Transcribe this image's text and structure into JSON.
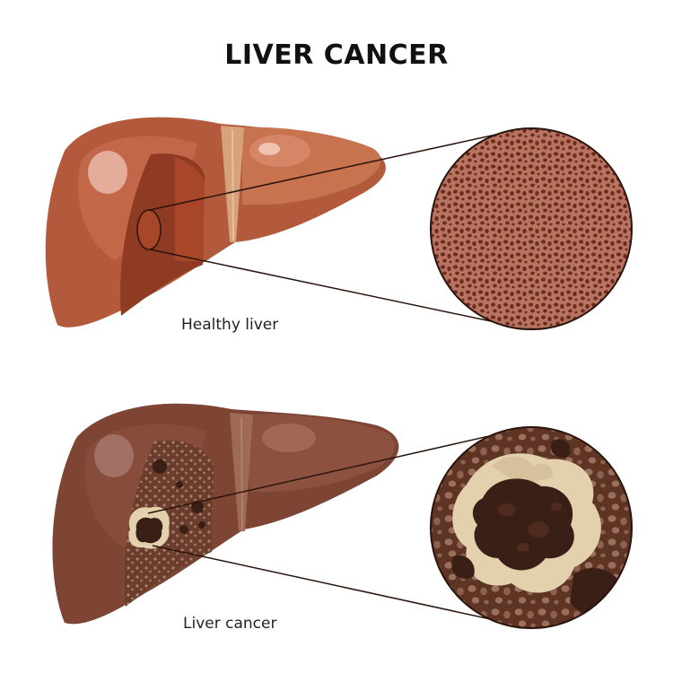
{
  "title": "LIVER CANCER",
  "panels": [
    {
      "label": "Healthy liver"
    },
    {
      "label": "Liver cancer"
    }
  ],
  "colors": {
    "healthy_liver": "#b35a3d",
    "healthy_tissue": "#a9614c",
    "diseased_liver": "#7e4434",
    "diseased_tissue": "#5a3324",
    "tumor": "#3a1f16",
    "tumor_halo": "#e3d0ad",
    "text": "#111111"
  }
}
